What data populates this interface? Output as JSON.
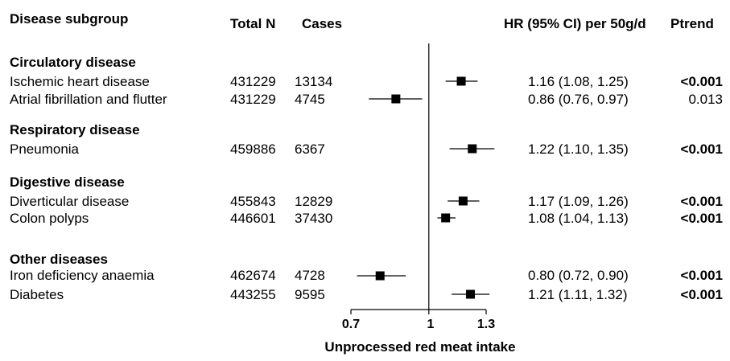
{
  "headers": {
    "subgroup": "Disease subgroup",
    "total_n": "Total N",
    "cases": "Cases",
    "hr": "HR (95% CI) per 50g/d",
    "ptrend": "Ptrend"
  },
  "groups": [
    {
      "label": "Circulatory disease"
    },
    {
      "label": "Respiratory disease"
    },
    {
      "label": "Digestive disease"
    },
    {
      "label": "Other diseases"
    }
  ],
  "rows": [
    {
      "name": "Ischemic heart disease",
      "n": "431229",
      "cases": "13134",
      "hr_text": "1.16 (1.08, 1.25)",
      "p": "<0.001",
      "p_bold": true
    },
    {
      "name": "Atrial fibrillation and flutter",
      "n": "431229",
      "cases": "4745",
      "hr_text": "0.86 (0.76, 0.97)",
      "p": "0.013",
      "p_bold": false
    },
    {
      "name": "Pneumonia",
      "n": "459886",
      "cases": "6367",
      "hr_text": "1.22 (1.10, 1.35)",
      "p": "<0.001",
      "p_bold": true
    },
    {
      "name": "Diverticular disease",
      "n": "455843",
      "cases": "12829",
      "hr_text": "1.17 (1.09, 1.26)",
      "p": "<0.001",
      "p_bold": true
    },
    {
      "name": "Colon polyps",
      "n": "446601",
      "cases": "37430",
      "hr_text": "1.08 (1.04, 1.13)",
      "p": "<0.001",
      "p_bold": true
    },
    {
      "name": "Iron deficiency anaemia",
      "n": "462674",
      "cases": "4728",
      "hr_text": "0.80 (0.72, 0.90)",
      "p": "<0.001",
      "p_bold": true
    },
    {
      "name": "Diabetes",
      "n": "443255",
      "cases": "9595",
      "hr_text": "1.21 (1.11, 1.32)",
      "p": "<0.001",
      "p_bold": true
    }
  ],
  "chart_data": {
    "type": "forest",
    "xlabel": "Unprocessed red meat intake",
    "x_ticks": [
      "0.7",
      "1",
      "1.3"
    ],
    "xlim": [
      0.7,
      1.3
    ],
    "reference_line": 1.0,
    "series": [
      {
        "name": "Ischemic heart disease",
        "hr": 1.16,
        "lo": 1.08,
        "hi": 1.25
      },
      {
        "name": "Atrial fibrillation and flutter",
        "hr": 0.86,
        "lo": 0.76,
        "hi": 0.97
      },
      {
        "name": "Pneumonia",
        "hr": 1.22,
        "lo": 1.1,
        "hi": 1.35
      },
      {
        "name": "Diverticular disease",
        "hr": 1.17,
        "lo": 1.09,
        "hi": 1.26
      },
      {
        "name": "Colon polyps",
        "hr": 1.08,
        "lo": 1.04,
        "hi": 1.13
      },
      {
        "name": "Iron deficiency anaemia",
        "hr": 0.8,
        "lo": 0.72,
        "hi": 0.9
      },
      {
        "name": "Diabetes",
        "hr": 1.21,
        "lo": 1.11,
        "hi": 1.32
      }
    ]
  }
}
